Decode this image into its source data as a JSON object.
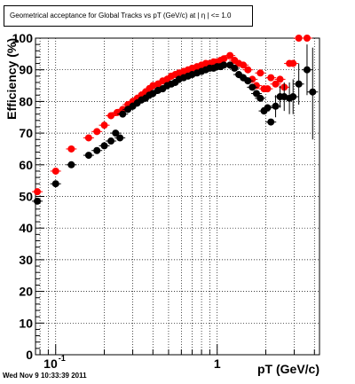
{
  "chart_data": {
    "type": "scatter",
    "title": "Geometrical acceptance for Global Tracks vs pT (GeV/c) at | η | <= 1.0",
    "xlabel": "pT (GeV/c)",
    "ylabel": "Efficiency (%)",
    "x_scale": "log",
    "xlim": [
      0.075,
      4.3
    ],
    "ylim": [
      0,
      100
    ],
    "grid": true,
    "y_ticks": [
      "0",
      "10",
      "20",
      "30",
      "40",
      "50",
      "60",
      "70",
      "80",
      "90",
      "100"
    ],
    "x_tick_labels": [
      {
        "value": 0.1,
        "base": "10",
        "exp": "-1"
      },
      {
        "value": 1,
        "base": "1",
        "exp": ""
      }
    ],
    "series": [
      {
        "color": "#ff0000",
        "points": [
          [
            0.077,
            51.5
          ],
          [
            0.1,
            58
          ],
          [
            0.125,
            65
          ],
          [
            0.16,
            68.5
          ],
          [
            0.18,
            70.5
          ],
          [
            0.2,
            72.5
          ],
          [
            0.22,
            75.5
          ],
          [
            0.24,
            76.5
          ],
          [
            0.26,
            77.5
          ],
          [
            0.28,
            79
          ],
          [
            0.3,
            80
          ],
          [
            0.32,
            81
          ],
          [
            0.34,
            82
          ],
          [
            0.36,
            83
          ],
          [
            0.38,
            84
          ],
          [
            0.4,
            85
          ],
          [
            0.43,
            85.5
          ],
          [
            0.46,
            86.5
          ],
          [
            0.49,
            87
          ],
          [
            0.52,
            88
          ],
          [
            0.55,
            88.5
          ],
          [
            0.58,
            89
          ],
          [
            0.62,
            89.5
          ],
          [
            0.66,
            90
          ],
          [
            0.7,
            90.5
          ],
          [
            0.75,
            91
          ],
          [
            0.8,
            91.5
          ],
          [
            0.85,
            92
          ],
          [
            0.9,
            92
          ],
          [
            0.95,
            92.5
          ],
          [
            1.0,
            92.5
          ],
          [
            1.05,
            93
          ],
          [
            1.1,
            93.5
          ],
          [
            1.2,
            94.5
          ],
          [
            1.28,
            93
          ],
          [
            1.36,
            92
          ],
          [
            1.45,
            91.5
          ],
          [
            1.55,
            90
          ],
          [
            1.65,
            87
          ],
          [
            1.75,
            85
          ],
          [
            1.85,
            89
          ],
          [
            1.95,
            84
          ],
          [
            2.05,
            84
          ],
          [
            2.15,
            87.5
          ],
          [
            2.3,
            85.5
          ],
          [
            2.45,
            87
          ],
          [
            2.6,
            84.5
          ],
          [
            2.8,
            92
          ],
          [
            2.95,
            92
          ],
          [
            3.2,
            100
          ],
          [
            3.6,
            100
          ]
        ]
      },
      {
        "color": "#000000",
        "points": [
          [
            0.077,
            48.5
          ],
          [
            0.1,
            54
          ],
          [
            0.125,
            60
          ],
          [
            0.16,
            63
          ],
          [
            0.18,
            64.5
          ],
          [
            0.2,
            66
          ],
          [
            0.22,
            67.5
          ],
          [
            0.235,
            70
          ],
          [
            0.25,
            68.5
          ],
          [
            0.26,
            76
          ],
          [
            0.28,
            77.5
          ],
          [
            0.3,
            78.5
          ],
          [
            0.32,
            79.5
          ],
          [
            0.34,
            80.5
          ],
          [
            0.36,
            81
          ],
          [
            0.38,
            82
          ],
          [
            0.4,
            82.5
          ],
          [
            0.43,
            83.5
          ],
          [
            0.46,
            84
          ],
          [
            0.49,
            85
          ],
          [
            0.52,
            85.5
          ],
          [
            0.55,
            86
          ],
          [
            0.58,
            87
          ],
          [
            0.62,
            87.5
          ],
          [
            0.66,
            88
          ],
          [
            0.7,
            88.5
          ],
          [
            0.75,
            89
          ],
          [
            0.8,
            89.5
          ],
          [
            0.85,
            90
          ],
          [
            0.9,
            90.5
          ],
          [
            0.95,
            90.5
          ],
          [
            1.0,
            91
          ],
          [
            1.05,
            91
          ],
          [
            1.1,
            91.5
          ],
          [
            1.2,
            91.5
          ],
          [
            1.28,
            90.5
          ],
          [
            1.36,
            88.5
          ],
          [
            1.45,
            87.5
          ],
          [
            1.55,
            86.5
          ],
          [
            1.65,
            84.5
          ],
          [
            1.75,
            82.5
          ],
          [
            1.85,
            81
          ],
          [
            1.95,
            77
          ],
          [
            2.05,
            78
          ],
          [
            2.15,
            73.5
          ],
          [
            2.3,
            78.5
          ],
          [
            2.45,
            81.5
          ],
          [
            2.6,
            81.5
          ],
          [
            2.8,
            81
          ],
          [
            2.95,
            81.5
          ],
          [
            3.2,
            85.5
          ],
          [
            3.6,
            90
          ],
          [
            3.9,
            83
          ]
        ],
        "error_bars": [
          [
            2.3,
            75,
            82
          ],
          [
            2.45,
            78,
            85
          ],
          [
            2.6,
            77,
            86
          ],
          [
            2.8,
            76,
            86
          ],
          [
            2.95,
            76,
            87
          ],
          [
            3.2,
            79,
            92
          ],
          [
            3.6,
            82,
            98
          ],
          [
            3.9,
            68,
            97
          ]
        ]
      }
    ],
    "timestamp": "Wed Nov  9 10:33:39 2011"
  }
}
